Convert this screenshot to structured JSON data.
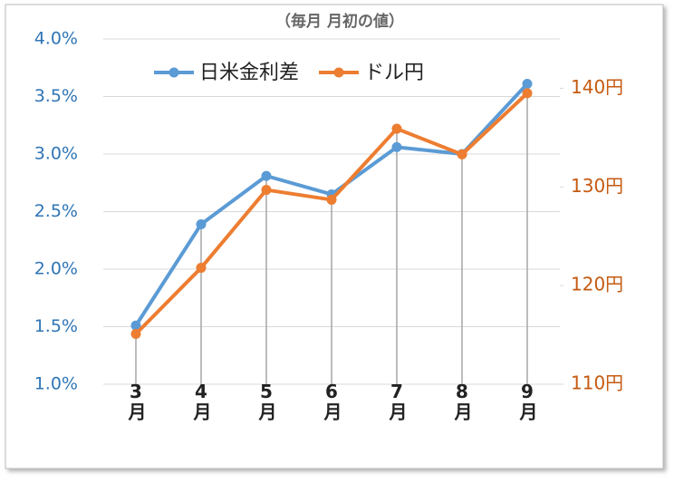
{
  "chart_data": {
    "type": "line",
    "title": "（毎月 月初の値）",
    "categories": [
      "3月",
      "4月",
      "5月",
      "6月",
      "7月",
      "8月",
      "9月"
    ],
    "series": [
      {
        "name": "日米金利差",
        "color": "#5b9bd5",
        "values": [
          1.51,
          2.39,
          2.81,
          2.65,
          3.06,
          3.0,
          3.61
        ]
      },
      {
        "name": "ドル円",
        "color": "#ed7d31",
        "axis": "y2",
        "values": [
          115.1,
          121.8,
          129.7,
          128.7,
          135.9,
          133.3,
          139.5
        ]
      }
    ],
    "ylim": [
      1.0,
      4.0
    ],
    "yticks": [
      {
        "value": 1.0,
        "label": "1.0%"
      },
      {
        "value": 1.5,
        "label": "1.5%"
      },
      {
        "value": 2.0,
        "label": "2.0%"
      },
      {
        "value": 2.5,
        "label": "2.5%"
      },
      {
        "value": 3.0,
        "label": "3.0%"
      },
      {
        "value": 3.5,
        "label": "3.5%"
      },
      {
        "value": 4.0,
        "label": "4.0%"
      }
    ],
    "y2lim": [
      110,
      145
    ],
    "y2ticks": [
      {
        "value": 110,
        "label": "110円"
      },
      {
        "value": 120,
        "label": "120円"
      },
      {
        "value": 130,
        "label": "130円"
      },
      {
        "value": 140,
        "label": "140円"
      }
    ],
    "grid": true,
    "legend": "top"
  }
}
